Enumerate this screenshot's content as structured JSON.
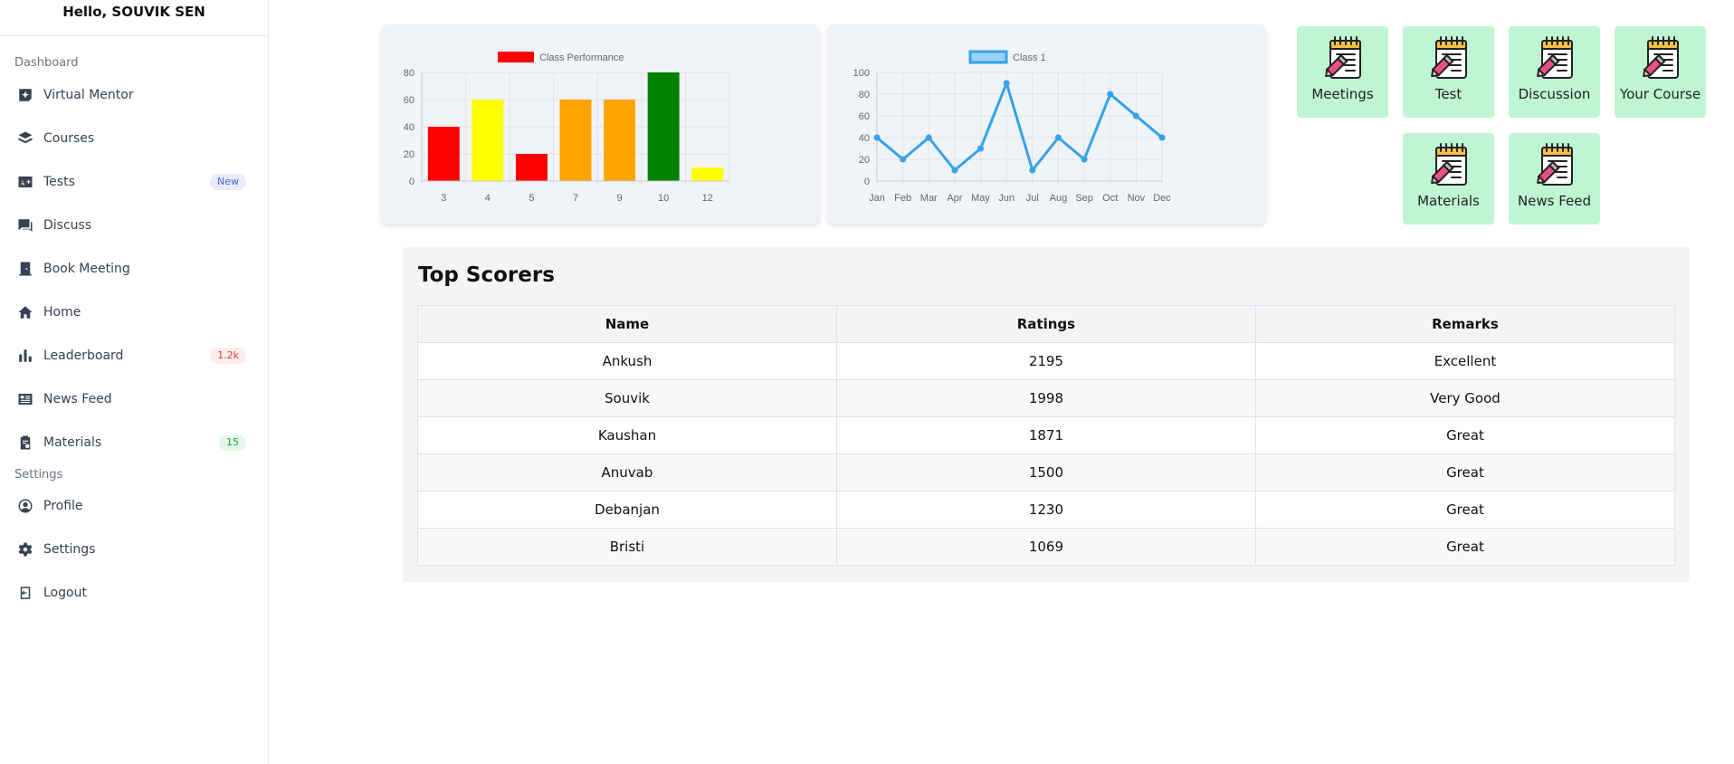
{
  "sidebar": {
    "greeting": "Hello, SOUVIK SEN",
    "section_dashboard": "Dashboard",
    "section_settings": "Settings",
    "items": [
      {
        "label": "Virtual Mentor",
        "icon": "sparkle-icon"
      },
      {
        "label": "Courses",
        "icon": "layers-icon"
      },
      {
        "label": "Tests",
        "icon": "grade-icon",
        "badge": "New"
      },
      {
        "label": "Discuss",
        "icon": "chat-icon"
      },
      {
        "label": "Book Meeting",
        "icon": "door-icon"
      },
      {
        "label": "Home",
        "icon": "home-icon"
      },
      {
        "label": "Leaderboard",
        "icon": "bar-chart-icon",
        "badge": "1.2k"
      },
      {
        "label": "News Feed",
        "icon": "newspaper-icon"
      },
      {
        "label": "Materials",
        "icon": "clipboard-icon",
        "badge": "15"
      }
    ],
    "settings_items": [
      {
        "label": "Profile",
        "icon": "user-circle-icon"
      },
      {
        "label": "Settings",
        "icon": "gear-icon"
      },
      {
        "label": "Logout",
        "icon": "logout-icon"
      }
    ]
  },
  "tiles": [
    {
      "label": "Meetings",
      "icon": "notepad-pencil-icon"
    },
    {
      "label": "Test",
      "icon": "notepad-pencil-icon"
    },
    {
      "label": "Discussion",
      "icon": "notepad-pencil-icon"
    },
    {
      "label": "Your Course",
      "icon": "notepad-pencil-icon"
    },
    {
      "label": "Materials",
      "icon": "notepad-pencil-icon"
    },
    {
      "label": "News Feed",
      "icon": "notepad-pencil-icon"
    }
  ],
  "colors": {
    "tile_bg": "#bff5d2",
    "line": "#36a2eb",
    "bar_red": "#ff0000",
    "bar_yellow": "#ffff00",
    "bar_orange": "#ffa500",
    "bar_green": "#008000"
  },
  "chart_data": [
    {
      "type": "bar",
      "categories": [
        "3",
        "4",
        "5",
        "7",
        "9",
        "10",
        "12"
      ],
      "series": [
        {
          "name": "Class Performance",
          "values": [
            40,
            60,
            20,
            60,
            60,
            80,
            10
          ]
        }
      ],
      "bar_colors": [
        "#ff0000",
        "#ffff00",
        "#ff0000",
        "#ffa500",
        "#ffa500",
        "#008000",
        "#ffff00"
      ],
      "yticks": [
        0,
        20,
        40,
        60,
        80
      ],
      "ylim": [
        0,
        80
      ],
      "grid": true,
      "legend": "top"
    },
    {
      "type": "line",
      "categories": [
        "Jan",
        "Feb",
        "Mar",
        "Apr",
        "May",
        "Jun",
        "Jul",
        "Aug",
        "Sep",
        "Oct",
        "Nov",
        "Dec"
      ],
      "series": [
        {
          "name": "Class 1",
          "values": [
            40,
            20,
            40,
            10,
            30,
            90,
            10,
            40,
            20,
            80,
            60,
            40
          ]
        }
      ],
      "yticks": [
        0,
        20,
        40,
        60,
        80,
        100
      ],
      "ylim": [
        0,
        100
      ],
      "grid": true,
      "legend": "top"
    }
  ],
  "scorers": {
    "title": "Top Scorers",
    "columns": [
      "Name",
      "Ratings",
      "Remarks"
    ],
    "rows": [
      [
        "Ankush",
        "2195",
        "Excellent"
      ],
      [
        "Souvik",
        "1998",
        "Very Good"
      ],
      [
        "Kaushan",
        "1871",
        "Great"
      ],
      [
        "Anuvab",
        "1500",
        "Great"
      ],
      [
        "Debanjan",
        "1230",
        "Great"
      ],
      [
        "Bristi",
        "1069",
        "Great"
      ]
    ]
  }
}
